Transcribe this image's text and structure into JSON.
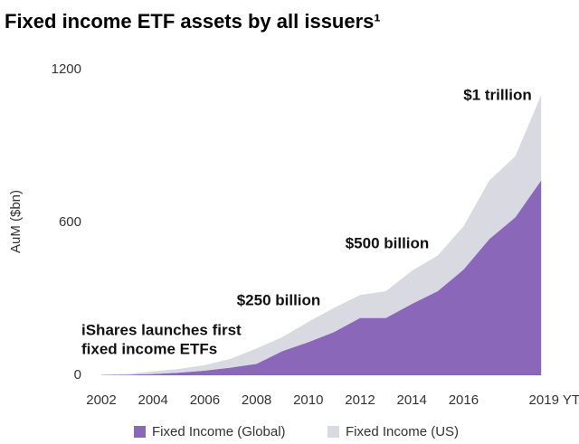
{
  "chart_data": {
    "type": "stacked_area",
    "title": "Fixed income ETF assets by all issuers¹",
    "y_label": "AuM ($bn)",
    "x": [
      2002,
      2003,
      2004,
      2005,
      2006,
      2007,
      2008,
      2009,
      2010,
      2011,
      2012,
      2013,
      2014,
      2015,
      2016,
      2017,
      2018,
      2019
    ],
    "series": [
      {
        "name": "Fixed Income (Global)",
        "color": "#8a67b8",
        "values": [
          1,
          2,
          5,
          10,
          18,
          30,
          45,
          95,
          130,
          170,
          225,
          225,
          280,
          330,
          415,
          535,
          620,
          765
        ]
      },
      {
        "name": "Fixed Income (US)",
        "color": "#d9d9e1",
        "values": [
          2,
          3,
          10,
          15,
          22,
          35,
          60,
          55,
          80,
          95,
          90,
          105,
          130,
          140,
          170,
          230,
          240,
          335
        ]
      }
    ],
    "xlim": [
      2001.5,
      2019.2
    ],
    "xticks": [
      2002,
      2004,
      2006,
      2008,
      2010,
      2012,
      2014,
      2016,
      {
        "value": 2019,
        "label": "2019 YTD"
      }
    ],
    "ylim": [
      0,
      1200
    ],
    "yticks": [
      0,
      600,
      1200
    ],
    "annotations": [
      "$1 trillion",
      "$500 billion",
      "$250 billion",
      "iShares launches first",
      "fixed income ETFs"
    ]
  }
}
